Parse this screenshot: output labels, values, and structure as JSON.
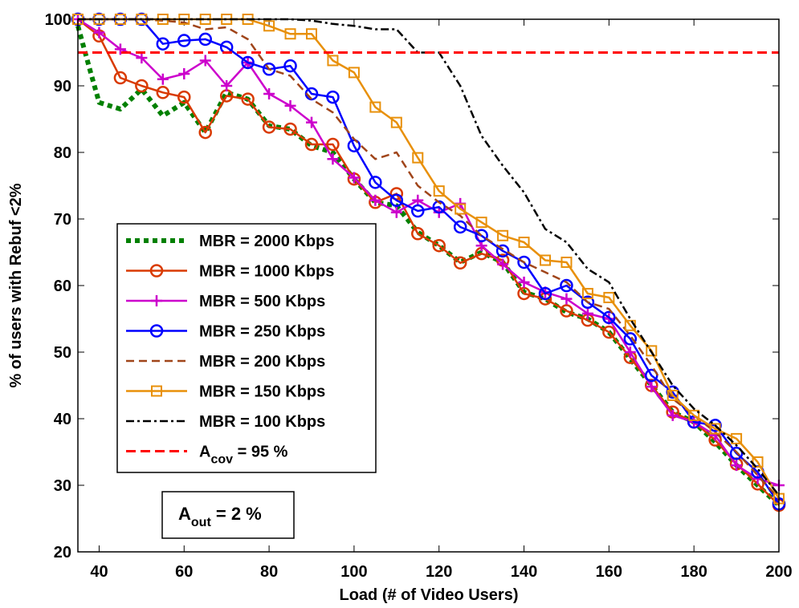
{
  "chart_data": {
    "type": "line",
    "xlabel": "Load (# of Video Users)",
    "ylabel": "% of users with Rebuf <2%",
    "xlim": [
      35,
      200
    ],
    "ylim": [
      20,
      100
    ],
    "xticks": [
      40,
      60,
      80,
      100,
      120,
      140,
      160,
      180,
      200
    ],
    "yticks": [
      20,
      30,
      40,
      50,
      60,
      70,
      80,
      90,
      100
    ],
    "legend_position": "center-left",
    "series": [
      {
        "name": "MBR = 2000 Kbps",
        "color": "#008000",
        "style": "dotted-thick",
        "marker": "none",
        "x": [
          35,
          38,
          40,
          45,
          50,
          55,
          60,
          65,
          70,
          75,
          80,
          85,
          90,
          95,
          100,
          105,
          110,
          115,
          120,
          125,
          130,
          135,
          140,
          145,
          150,
          155,
          160,
          165,
          170,
          175,
          180,
          185,
          190,
          195,
          200
        ],
        "y": [
          99,
          92,
          87.5,
          86.5,
          89.5,
          85.5,
          87.5,
          83,
          89,
          88,
          84,
          83.5,
          81,
          80,
          76,
          72.5,
          72,
          68,
          66,
          63.5,
          65,
          63.5,
          59,
          58,
          56,
          55,
          53,
          49,
          45,
          41,
          39.5,
          36.5,
          33,
          30,
          27
        ]
      },
      {
        "name": "MBR = 1000 Kbps",
        "color": "#d93a00",
        "style": "solid",
        "marker": "circle",
        "x": [
          35,
          40,
          45,
          50,
          55,
          60,
          65,
          70,
          75,
          80,
          85,
          90,
          95,
          100,
          105,
          110,
          115,
          120,
          125,
          130,
          135,
          140,
          145,
          150,
          155,
          160,
          165,
          170,
          175,
          180,
          185,
          190,
          195,
          200
        ],
        "y": [
          100,
          97.5,
          91.2,
          90,
          89,
          88.3,
          83,
          88.5,
          88,
          83.8,
          83.5,
          81.2,
          81.2,
          76,
          72.5,
          73.8,
          67.8,
          66,
          63.4,
          64.8,
          63.8,
          58.8,
          58,
          56.2,
          54.8,
          53,
          49.2,
          45,
          41,
          39.5,
          36.8,
          33.2,
          30.2,
          27
        ]
      },
      {
        "name": "MBR = 500 Kbps",
        "color": "#cc00cc",
        "style": "solid",
        "marker": "plus",
        "x": [
          35,
          40,
          45,
          50,
          55,
          60,
          65,
          70,
          75,
          80,
          85,
          90,
          95,
          100,
          105,
          110,
          115,
          120,
          125,
          130,
          135,
          140,
          145,
          150,
          155,
          160,
          165,
          170,
          175,
          180,
          185,
          190,
          195,
          200
        ],
        "y": [
          100,
          98,
          95.5,
          94.2,
          91,
          91.8,
          93.8,
          90,
          93.5,
          88.8,
          87,
          84.5,
          79,
          76.2,
          72.8,
          71,
          72.8,
          71,
          72.3,
          66,
          63.2,
          60.5,
          59,
          58,
          55.8,
          55,
          50,
          44.8,
          40.5,
          39.5,
          37.5,
          33,
          31,
          30
        ]
      },
      {
        "name": "MBR = 250 Kbps",
        "color": "#0000ff",
        "style": "solid",
        "marker": "circle",
        "x": [
          35,
          40,
          45,
          50,
          55,
          60,
          65,
          70,
          75,
          80,
          85,
          90,
          95,
          100,
          105,
          110,
          115,
          120,
          125,
          130,
          135,
          140,
          145,
          150,
          155,
          160,
          165,
          170,
          175,
          180,
          185,
          190,
          195,
          200
        ],
        "y": [
          100,
          100,
          100,
          100,
          96.3,
          96.8,
          97,
          95.8,
          93.5,
          92.5,
          93,
          88.8,
          88.3,
          81,
          75.5,
          72.8,
          71.2,
          71.8,
          68.8,
          67.5,
          65.2,
          63.5,
          58.8,
          60,
          57.5,
          55.2,
          52,
          46.5,
          44,
          39.5,
          39,
          34.8,
          32,
          27.2
        ]
      },
      {
        "name": "MBR = 200 Kbps",
        "color": "#a0451a",
        "style": "dashed",
        "marker": "none",
        "x": [
          35,
          40,
          45,
          50,
          55,
          60,
          65,
          70,
          75,
          80,
          85,
          90,
          95,
          100,
          105,
          110,
          115,
          120,
          125,
          130,
          135,
          140,
          145,
          150,
          155,
          160,
          165,
          170,
          175,
          180,
          185,
          190,
          195,
          200
        ],
        "y": [
          100,
          100,
          100,
          100,
          99.8,
          99.5,
          98.5,
          98.8,
          97,
          92.5,
          91.5,
          88,
          86,
          82,
          79,
          80,
          75,
          72.5,
          70.5,
          67.5,
          65.5,
          63.5,
          62,
          60.5,
          57.5,
          56.5,
          52.5,
          48,
          43,
          40.5,
          38,
          35,
          31.5,
          28
        ]
      },
      {
        "name": "MBR = 150 Kbps",
        "color": "#e8900a",
        "style": "solid",
        "marker": "square",
        "x": [
          35,
          40,
          45,
          50,
          55,
          60,
          65,
          70,
          75,
          80,
          85,
          90,
          95,
          100,
          105,
          110,
          115,
          120,
          125,
          130,
          135,
          140,
          145,
          150,
          155,
          160,
          165,
          170,
          175,
          180,
          185,
          190,
          195,
          200
        ],
        "y": [
          100,
          100,
          100,
          100,
          100,
          100,
          100,
          100,
          100,
          99,
          97.8,
          97.8,
          93.8,
          92,
          86.8,
          84.5,
          79.2,
          74.2,
          71.5,
          69.5,
          67.5,
          66.5,
          63.8,
          63.5,
          58.8,
          58.2,
          54,
          50.2,
          43.5,
          40.5,
          38.5,
          37,
          33.5,
          28
        ]
      },
      {
        "name": "MBR = 100 Kbps",
        "color": "#000000",
        "style": "dashdot",
        "marker": "none",
        "x": [
          35,
          40,
          45,
          50,
          55,
          60,
          65,
          70,
          75,
          80,
          85,
          90,
          95,
          100,
          105,
          110,
          115,
          120,
          125,
          130,
          135,
          140,
          145,
          150,
          155,
          160,
          165,
          170,
          175,
          180,
          185,
          190,
          195,
          200
        ],
        "y": [
          100,
          100,
          100,
          100,
          100,
          100,
          100,
          100,
          100,
          100,
          100,
          99.8,
          99.3,
          99,
          98.5,
          98.5,
          95,
          95,
          90,
          82.5,
          78,
          74,
          68.5,
          66.5,
          62.5,
          60.5,
          55,
          50,
          45,
          41.5,
          39,
          36,
          32.5,
          28.5
        ]
      },
      {
        "name": "A_cov = 95 %",
        "label_main": "A",
        "label_sub": "cov",
        "label_tail": " = 95 %",
        "color": "#ff0000",
        "style": "dashed",
        "marker": "none",
        "x": [
          35,
          200
        ],
        "y": [
          95,
          95
        ]
      }
    ],
    "annotation": {
      "main": "A",
      "sub": "out",
      "tail": " = 2 %"
    }
  }
}
